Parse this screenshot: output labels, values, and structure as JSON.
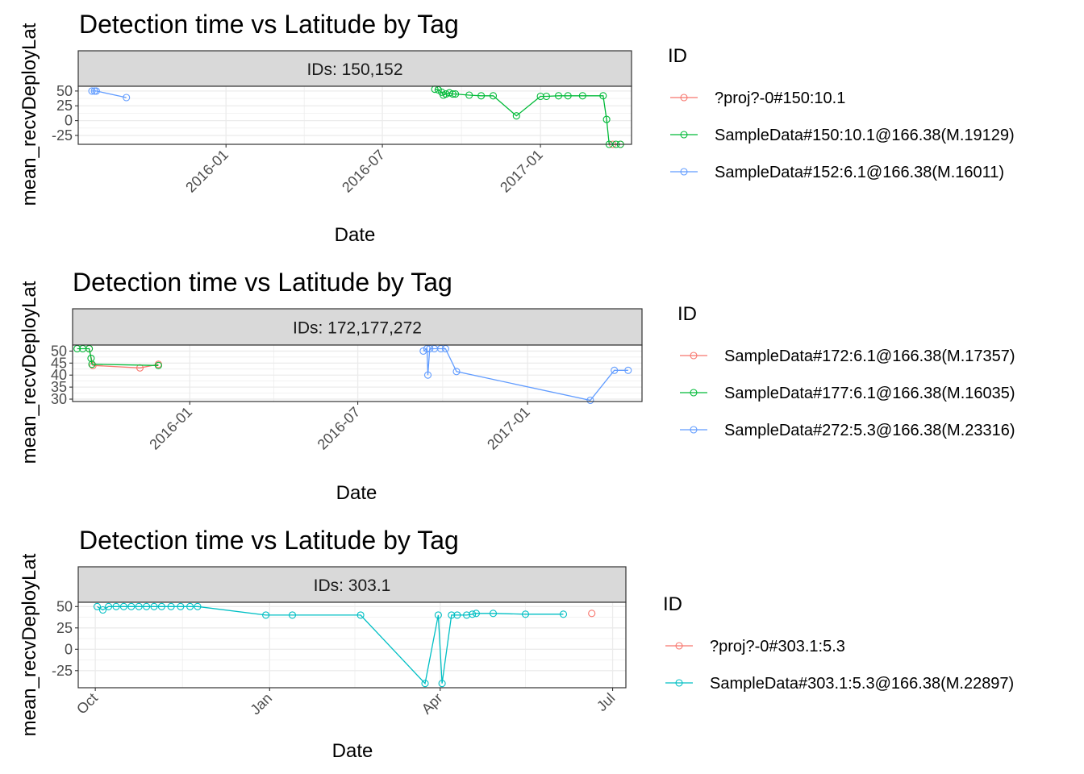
{
  "chart_data": [
    {
      "type": "line",
      "title": "Detection time vs Latitude by Tag",
      "strip": "IDs: 150,152",
      "xlabel": "Date",
      "ylabel": "mean_recvDeployLat",
      "xlim": [
        "2015-07-13",
        "2017-04-17"
      ],
      "ylim": [
        -40,
        58
      ],
      "xticks": [
        {
          "label": "2016-01",
          "date": "2016-01-01"
        },
        {
          "label": "2016-07",
          "date": "2016-07-01"
        },
        {
          "label": "2017-01",
          "date": "2017-01-01"
        }
      ],
      "yticks": [
        50,
        25,
        0,
        -25
      ],
      "grid": true,
      "legend_title": "ID",
      "legend_position": "right",
      "series": [
        {
          "name": "?proj?-0#150:10.1",
          "color": "#F8766D",
          "points": [
            [
              "2017-03-26",
              -40
            ],
            [
              "2017-04-04",
              -40
            ]
          ]
        },
        {
          "name": "SampleData#150:10.1@166.38(M.19129)",
          "color": "#00BA38",
          "points": [
            [
              "2016-08-31",
              53
            ],
            [
              "2016-09-04",
              52
            ],
            [
              "2016-09-08",
              48
            ],
            [
              "2016-09-10",
              43
            ],
            [
              "2016-09-13",
              45
            ],
            [
              "2016-09-17",
              47
            ],
            [
              "2016-09-21",
              45
            ],
            [
              "2016-09-24",
              45
            ],
            [
              "2016-10-10",
              43
            ],
            [
              "2016-10-24",
              42
            ],
            [
              "2016-11-07",
              42
            ],
            [
              "2016-12-04",
              8
            ],
            [
              "2017-01-01",
              41
            ],
            [
              "2017-01-08",
              41
            ],
            [
              "2017-01-22",
              42
            ],
            [
              "2017-02-02",
              42
            ],
            [
              "2017-02-19",
              42
            ],
            [
              "2017-03-15",
              42
            ],
            [
              "2017-03-19",
              2
            ],
            [
              "2017-03-22",
              -40
            ],
            [
              "2017-03-30",
              -40
            ],
            [
              "2017-04-04",
              -40
            ]
          ]
        },
        {
          "name": "SampleData#152:6.1@166.38(M.16011)",
          "color": "#619CFF",
          "points": [
            [
              "2015-07-29",
              50
            ],
            [
              "2015-08-01",
              50
            ],
            [
              "2015-08-03",
              50
            ],
            [
              "2015-09-07",
              39
            ]
          ]
        }
      ]
    },
    {
      "type": "line",
      "title": "Detection time vs Latitude by Tag",
      "strip": "IDs: 172,177,272",
      "xlabel": "Date",
      "ylabel": "mean_recvDeployLat",
      "xlim": [
        "2015-08-27",
        "2017-05-05"
      ],
      "ylim": [
        29,
        52.5
      ],
      "xticks": [
        {
          "label": "2016-01",
          "date": "2016-01-01"
        },
        {
          "label": "2016-07",
          "date": "2016-07-01"
        },
        {
          "label": "2017-01",
          "date": "2017-01-01"
        }
      ],
      "yticks": [
        50,
        45,
        40,
        35,
        30
      ],
      "grid": true,
      "legend_title": "ID",
      "legend_position": "right",
      "series": [
        {
          "name": "SampleData#172:6.1@166.38(M.17357)",
          "color": "#F8766D",
          "points": [
            [
              "2015-09-14",
              51
            ],
            [
              "2015-09-18",
              44
            ],
            [
              "2015-11-08",
              43
            ],
            [
              "2015-11-28",
              44.5
            ]
          ]
        },
        {
          "name": "SampleData#177:6.1@166.38(M.16035)",
          "color": "#00BA38",
          "points": [
            [
              "2015-09-01",
              51
            ],
            [
              "2015-09-07",
              51
            ],
            [
              "2015-09-14",
              51
            ],
            [
              "2015-09-16",
              47
            ],
            [
              "2015-09-17",
              44.5
            ],
            [
              "2015-11-28",
              44
            ]
          ]
        },
        {
          "name": "SampleData#272:5.3@166.38(M.23316)",
          "color": "#619CFF",
          "points": [
            [
              "2016-09-10",
              50
            ],
            [
              "2016-09-14",
              51
            ],
            [
              "2016-09-15",
              40
            ],
            [
              "2016-09-17",
              51
            ],
            [
              "2016-09-22",
              51
            ],
            [
              "2016-09-29",
              51
            ],
            [
              "2016-10-04",
              51
            ],
            [
              "2016-10-16",
              41.5
            ],
            [
              "2017-03-10",
              29.5
            ],
            [
              "2017-04-05",
              42
            ],
            [
              "2017-04-20",
              42
            ]
          ]
        }
      ]
    },
    {
      "type": "line",
      "title": "Detection time vs Latitude by Tag",
      "strip": "IDs: 303.1",
      "xlabel": "Date",
      "ylabel": "mean_recvDeployLat",
      "xlim": [
        "2016-09-22",
        "2017-07-08"
      ],
      "ylim": [
        -45,
        55
      ],
      "xticks": [
        {
          "label": "Oct",
          "date": "2016-10-01"
        },
        {
          "label": "Jan",
          "date": "2017-01-01"
        },
        {
          "label": "Apr",
          "date": "2017-04-01"
        },
        {
          "label": "Jul",
          "date": "2017-07-01"
        }
      ],
      "yticks": [
        50,
        25,
        0,
        -25
      ],
      "grid": true,
      "legend_title": "ID",
      "legend_position": "right",
      "series": [
        {
          "name": "?proj?-0#303.1:5.3",
          "color": "#F8766D",
          "points": [
            [
              "2017-06-20",
              42
            ]
          ]
        },
        {
          "name": "SampleData#303.1:5.3@166.38(M.22897)",
          "color": "#00BFC4",
          "points": [
            [
              "2016-10-02",
              50
            ],
            [
              "2016-10-05",
              46
            ],
            [
              "2016-10-08",
              50
            ],
            [
              "2016-10-12",
              50
            ],
            [
              "2016-10-16",
              50
            ],
            [
              "2016-10-20",
              50
            ],
            [
              "2016-10-24",
              50
            ],
            [
              "2016-10-28",
              50
            ],
            [
              "2016-11-01",
              50
            ],
            [
              "2016-11-05",
              50
            ],
            [
              "2016-11-10",
              50
            ],
            [
              "2016-11-15",
              50
            ],
            [
              "2016-11-20",
              50
            ],
            [
              "2016-11-24",
              50
            ],
            [
              "2016-12-30",
              40
            ],
            [
              "2017-01-13",
              40
            ],
            [
              "2017-02-18",
              40
            ],
            [
              "2017-03-24",
              -40
            ],
            [
              "2017-03-31",
              40
            ],
            [
              "2017-04-02",
              -40
            ],
            [
              "2017-04-07",
              40
            ],
            [
              "2017-04-10",
              40
            ],
            [
              "2017-04-15",
              40
            ],
            [
              "2017-04-18",
              41
            ],
            [
              "2017-04-20",
              42
            ],
            [
              "2017-04-29",
              42
            ],
            [
              "2017-05-16",
              41
            ],
            [
              "2017-06-05",
              41
            ]
          ]
        }
      ]
    }
  ]
}
